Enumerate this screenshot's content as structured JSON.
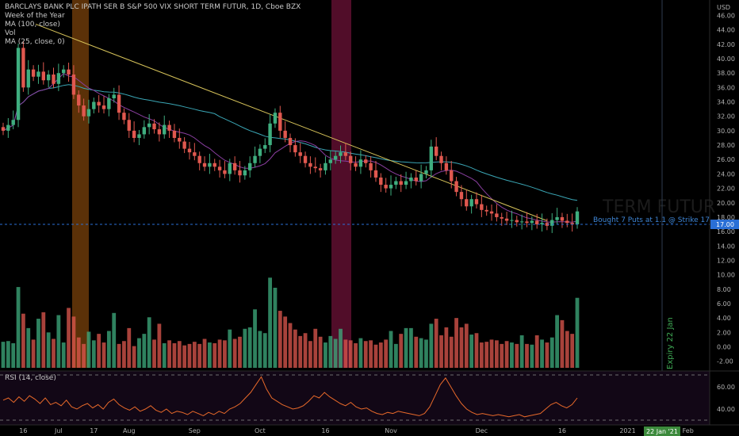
{
  "header": {
    "title": "BARCLAYS BANK PLC IPATH SER B S&P 500 VIX SHORT TERM FUTUR, 1D, Cboe BZX",
    "indicators": [
      "Week of the Year",
      "MA (100, close)",
      "Vol",
      "MA (25, close, 0)"
    ],
    "currency": "USD"
  },
  "colors": {
    "background": "#000000",
    "up": "#3fae7f",
    "down": "#e0584f",
    "ma100": "#3aa6b5",
    "ma25": "#8a3fa0",
    "trendline": "#d8c45a",
    "rsi": "#e8692a",
    "band_orange": "#6b3a09",
    "band_maroon": "#5a0e2e",
    "axis_text": "#b0b0b0",
    "price_label_bg": "#2a6fd6",
    "annotation_text": "#3f86d6",
    "expiry_text": "#3faa55",
    "expiry_badge_bg": "#3c8a3c"
  },
  "annotations": {
    "trade_note": "Bought 7 Puts at 1.1 @ Strike 17",
    "expiry_label": "Expiry 22 Jan",
    "expiry_badge": "22 Jan '21",
    "watermark": "TERM FUTUR",
    "last_price": "17.00"
  },
  "rsi_label": "RSI (14, close)",
  "chart_data": [
    {
      "type": "candlestick",
      "title": "BARCLAYS BANK PLC IPATH SER B S&P 500 VIX SHORT TERM FUTUR, 1D, Cboe BZX",
      "x_ticks": [
        "16",
        "Jul",
        "17",
        "Aug",
        "Sep",
        "Oct",
        "16",
        "Nov",
        "Dec",
        "16",
        "2021",
        "Feb"
      ],
      "y_ticks": [
        "46.00",
        "44.00",
        "42.00",
        "40.00",
        "38.00",
        "36.00",
        "34.00",
        "32.00",
        "30.00",
        "28.00",
        "26.00",
        "24.00",
        "22.00",
        "20.00",
        "18.00",
        "16.00",
        "14.00",
        "12.00",
        "10.00",
        "8.00",
        "6.00",
        "4.00",
        "2.00",
        "0.00",
        "-2.00"
      ],
      "ylim": [
        -2,
        48
      ],
      "close": [
        30.0,
        30.8,
        31.5,
        41.5,
        36.0,
        38.5,
        37.5,
        38.2,
        37.0,
        37.8,
        36.5,
        38.0,
        38.5,
        37.8,
        35.0,
        33.5,
        32.0,
        33.0,
        34.0,
        33.5,
        33.0,
        34.5,
        35.0,
        32.5,
        31.5,
        30.0,
        29.0,
        29.5,
        30.5,
        31.0,
        30.2,
        29.5,
        30.8,
        30.0,
        29.0,
        28.5,
        27.5,
        27.0,
        26.5,
        25.5,
        25.0,
        25.5,
        25.0,
        24.5,
        24.0,
        25.5,
        24.5,
        23.8,
        24.5,
        25.5,
        26.5,
        27.5,
        28.0,
        31.0,
        32.5,
        30.0,
        29.0,
        28.0,
        27.0,
        26.5,
        25.5,
        25.0,
        24.8,
        24.5,
        25.5,
        26.0,
        26.5,
        27.0,
        26.5,
        25.5,
        25.0,
        26.0,
        25.5,
        24.5,
        23.5,
        22.5,
        22.0,
        22.5,
        23.0,
        22.5,
        23.0,
        23.5,
        23.0,
        24.0,
        24.5,
        27.8,
        26.5,
        25.5,
        24.5,
        23.0,
        21.5,
        20.5,
        19.5,
        20.5,
        19.8,
        19.0,
        18.8,
        18.5,
        18.0,
        17.8,
        17.5,
        17.6,
        17.3,
        17.4,
        17.2,
        17.5,
        17.0,
        17.2,
        16.8,
        17.6,
        18.0,
        17.5,
        17.2,
        17.0,
        18.8
      ],
      "volume": [
        0.7,
        0.8,
        0.5,
        8.3,
        4.6,
        2.6,
        1.0,
        3.9,
        4.8,
        2.0,
        1.1,
        4.4,
        0.6,
        5.4,
        4.2,
        1.3,
        0.4,
        2.1,
        0.9,
        1.8,
        0.6,
        2.2,
        4.7,
        0.4,
        0.8,
        2.6,
        0.1,
        1.2,
        1.8,
        4.1,
        1.0,
        3.2,
        0.5,
        0.9,
        0.5,
        0.8,
        0.2,
        0.4,
        0.7,
        0.4,
        1.1,
        0.6,
        0.5,
        1.0,
        0.9,
        2.4,
        1.1,
        1.4,
        2.5,
        2.7,
        5.2,
        2.2,
        1.9,
        9.6,
        8.2,
        5.0,
        4.2,
        3.3,
        2.4,
        1.5,
        1.9,
        0.8,
        2.5,
        1.4,
        0.6,
        1.5,
        1.1,
        2.5,
        1.0,
        0.9,
        0.5,
        1.2,
        0.8,
        0.9,
        0.3,
        0.6,
        1.0,
        2.2,
        0.4,
        1.8,
        2.6,
        2.6,
        1.4,
        1.2,
        1.0,
        3.2,
        3.9,
        1.6,
        2.7,
        1.4,
        4.0,
        2.7,
        3.2,
        1.7,
        1.9,
        0.6,
        0.7,
        1.0,
        0.9,
        0.4,
        0.8,
        0.6,
        0.4,
        1.6,
        0.4,
        0.3,
        1.6,
        1.0,
        0.6,
        1.3,
        4.4,
        3.7,
        2.2,
        1.8,
        6.8
      ]
    },
    {
      "type": "line",
      "title": "RSI (14, close)",
      "y_ticks": [
        "60.00",
        "40.00"
      ],
      "ylim": [
        30,
        70
      ],
      "values": [
        48,
        50,
        46,
        51,
        47,
        52,
        49,
        45,
        50,
        44,
        46,
        43,
        48,
        42,
        40,
        43,
        45,
        41,
        44,
        40,
        46,
        49,
        44,
        41,
        39,
        42,
        38,
        40,
        43,
        39,
        37,
        40,
        36,
        38,
        37,
        35,
        38,
        36,
        34,
        37,
        35,
        38,
        36,
        40,
        42,
        45,
        50,
        55,
        62,
        69,
        58,
        50,
        47,
        44,
        42,
        40,
        41,
        43,
        47,
        52,
        50,
        55,
        51,
        48,
        45,
        43,
        46,
        42,
        40,
        41,
        38,
        36,
        35,
        37,
        36,
        38,
        37,
        36,
        35,
        34,
        36,
        42,
        52,
        62,
        68,
        60,
        52,
        45,
        40,
        37,
        35,
        36,
        35,
        34,
        35,
        34,
        33,
        34,
        35,
        33,
        34,
        35,
        36,
        40,
        44,
        46,
        43,
        41,
        44,
        50
      ]
    }
  ]
}
